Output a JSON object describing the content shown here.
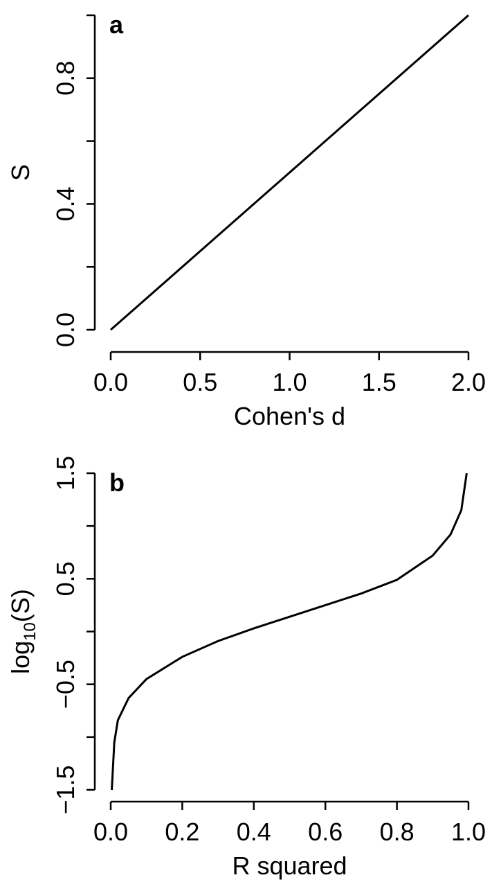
{
  "chart_data": [
    {
      "type": "line",
      "panel": "a",
      "x_label": "Cohen's d",
      "y_label": "S",
      "x": [
        0,
        0.5,
        1,
        1.5,
        2
      ],
      "series": [
        {
          "color": "#000000",
          "values": [
            0,
            0.25,
            0.5,
            0.75,
            1
          ]
        }
      ],
      "xlim": [
        0,
        2
      ],
      "ylim": [
        0,
        1
      ],
      "xticks": [
        {
          "value": 0,
          "label": "0.0"
        },
        {
          "value": 0.5,
          "label": "0.5"
        },
        {
          "value": 1,
          "label": "1.0"
        },
        {
          "value": 1.5,
          "label": "1.5"
        },
        {
          "value": 2,
          "label": "2.0"
        }
      ],
      "yticks": [
        {
          "value": 0,
          "label": "0.0"
        },
        {
          "value": 0.2,
          "label": null
        },
        {
          "value": 0.4,
          "label": "0.4"
        },
        {
          "value": 0.6,
          "label": null
        },
        {
          "value": 0.8,
          "label": "0.8"
        },
        {
          "value": 1,
          "label": null
        }
      ]
    },
    {
      "type": "line",
      "panel": "b",
      "x_label": "R squared",
      "y_label": {
        "base": "log",
        "subscript": "10",
        "rest": "(S)"
      },
      "x": [
        0.003,
        0.01,
        0.02,
        0.05,
        0.1,
        0.2,
        0.3,
        0.4,
        0.5,
        0.6,
        0.7,
        0.8,
        0.9,
        0.95,
        0.98,
        0.995
      ],
      "series": [
        {
          "color": "#000000",
          "values": [
            -1.5,
            -1.05,
            -0.84,
            -0.63,
            -0.45,
            -0.24,
            -0.09,
            0.03,
            0.14,
            0.25,
            0.36,
            0.49,
            0.72,
            0.92,
            1.15,
            1.5
          ]
        }
      ],
      "xlim": [
        0,
        1
      ],
      "ylim": [
        -1.5,
        1.5
      ],
      "xticks": [
        {
          "value": 0,
          "label": "0.0"
        },
        {
          "value": 0.2,
          "label": "0.2"
        },
        {
          "value": 0.4,
          "label": "0.4"
        },
        {
          "value": 0.6,
          "label": "0.6"
        },
        {
          "value": 0.8,
          "label": "0.8"
        },
        {
          "value": 1,
          "label": "1.0"
        }
      ],
      "yticks": [
        {
          "value": -1.5,
          "label": "−1.5"
        },
        {
          "value": -1,
          "label": null
        },
        {
          "value": -0.5,
          "label": "−0.5"
        },
        {
          "value": 0,
          "label": null
        },
        {
          "value": 0.5,
          "label": "0.5"
        },
        {
          "value": 1,
          "label": null
        },
        {
          "value": 1.5,
          "label": "1.5"
        }
      ]
    }
  ]
}
